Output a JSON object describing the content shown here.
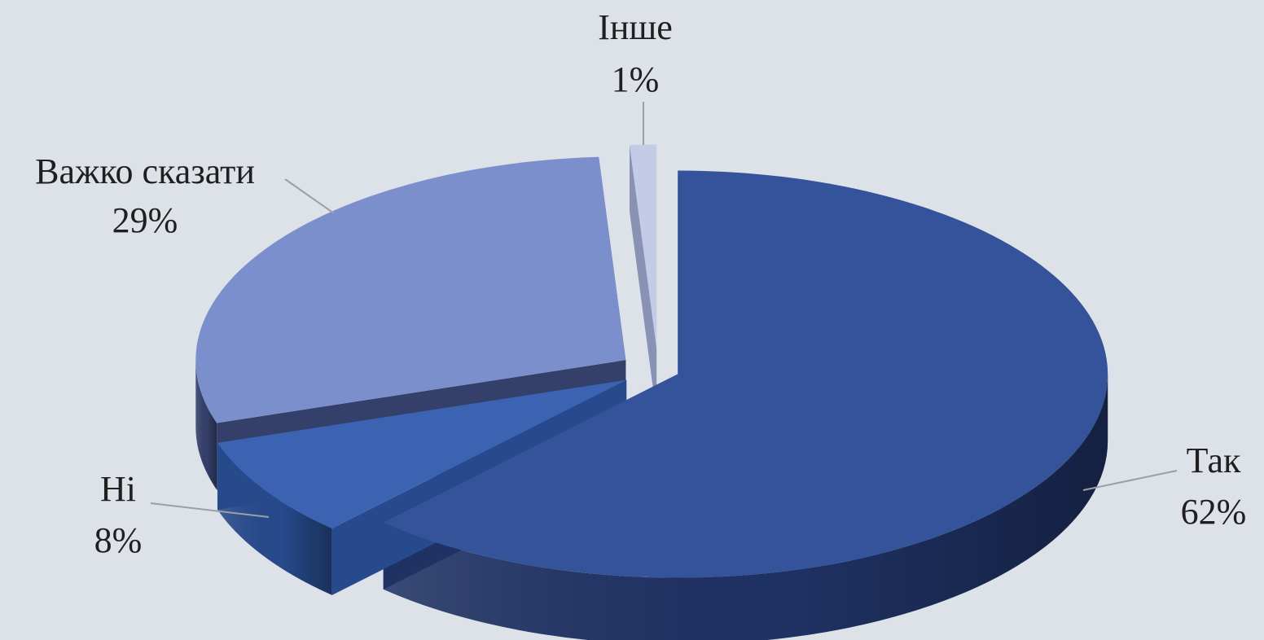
{
  "chart_data": {
    "type": "pie",
    "title": "",
    "style": "3d-exploded",
    "slices": [
      {
        "label": "Так",
        "value": 62,
        "value_label": "62%",
        "color": "#34539a",
        "side_color": "#1f3264"
      },
      {
        "label": "Ні",
        "value": 8,
        "value_label": "8%",
        "color": "#3b63b2",
        "side_color": "#264a8c"
      },
      {
        "label": "Важко сказати",
        "value": 29,
        "value_label": "29%",
        "color": "#7b8fcd",
        "side_color": "#34406a"
      },
      {
        "label": "Інше",
        "value": 1,
        "value_label": "1%",
        "color": "#c3cbe7",
        "side_color": "#8892b4"
      }
    ],
    "background": "#dde1e8",
    "leader_line_color": "#9aa0a8"
  }
}
